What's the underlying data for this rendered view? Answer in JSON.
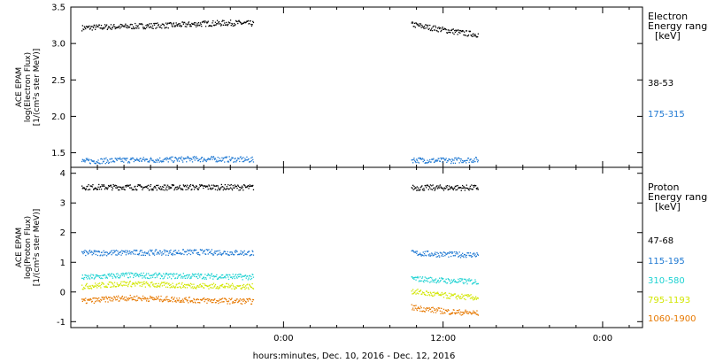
{
  "chart_data": [
    {
      "type": "scatter",
      "panel": "electron",
      "ylabel_lines": [
        "ACE EPAM",
        "log(Electron Flux)",
        "[1/(cm²s ster MeV)]"
      ],
      "ylim": [
        1.3,
        3.5
      ],
      "yticks": [
        1.5,
        2.0,
        2.5,
        3.0,
        3.5
      ],
      "ytick_labels": [
        "1.5",
        "2.0",
        "2.5",
        "3.0",
        "3.5"
      ],
      "legend_title_lines": [
        "Electron",
        "Energy ranges",
        "[keV]"
      ],
      "series": [
        {
          "name": "38-53",
          "color": "#000000",
          "segments": [
            {
              "x": [
                -15.2,
                -14,
                -12,
                -10,
                -8,
                -6,
                -4,
                -2.3
              ],
              "y": [
                3.22,
                3.23,
                3.24,
                3.25,
                3.26,
                3.28,
                3.29,
                3.28
              ]
            },
            {
              "x": [
                9.6,
                10.5,
                11.5,
                12.5,
                13.5,
                14.6
              ],
              "y": [
                3.27,
                3.24,
                3.21,
                3.18,
                3.15,
                3.13
              ]
            }
          ]
        },
        {
          "name": "175-315",
          "color": "#1e78d2",
          "segments": [
            {
              "x": [
                -15.2,
                -13,
                -11,
                -9,
                -7,
                -5,
                -2.3
              ],
              "y": [
                1.39,
                1.4,
                1.41,
                1.41,
                1.42,
                1.42,
                1.41
              ]
            },
            {
              "x": [
                9.6,
                11,
                12.5,
                14,
                14.6
              ],
              "y": [
                1.41,
                1.4,
                1.4,
                1.41,
                1.41
              ]
            }
          ]
        }
      ]
    },
    {
      "type": "scatter",
      "panel": "proton",
      "ylabel_lines": [
        "ACE EPAM",
        "log(Proton Flux)",
        "[1/(cm²s ster MeV)]"
      ],
      "ylim": [
        -1.2,
        4.2
      ],
      "yticks": [
        -1,
        0,
        1,
        2,
        3,
        4
      ],
      "ytick_labels": [
        "-1",
        "0",
        "1",
        "2",
        "3",
        "4"
      ],
      "legend_title_lines": [
        "Proton",
        "Energy ranges",
        "[keV]"
      ],
      "series": [
        {
          "name": "47-68",
          "color": "#000000",
          "segments": [
            {
              "x": [
                -15.2,
                -12,
                -9,
                -6,
                -2.3
              ],
              "y": [
                3.55,
                3.55,
                3.54,
                3.55,
                3.54
              ]
            },
            {
              "x": [
                9.6,
                12,
                14.6
              ],
              "y": [
                3.53,
                3.53,
                3.53
              ]
            }
          ]
        },
        {
          "name": "115-195",
          "color": "#1e78d2",
          "segments": [
            {
              "x": [
                -15.2,
                -12,
                -9,
                -6,
                -2.3
              ],
              "y": [
                1.33,
                1.34,
                1.35,
                1.36,
                1.33
              ]
            },
            {
              "x": [
                9.6,
                11,
                12.5,
                14.6
              ],
              "y": [
                1.33,
                1.3,
                1.28,
                1.27
              ]
            }
          ]
        },
        {
          "name": "310-580",
          "color": "#1ed2d2",
          "segments": [
            {
              "x": [
                -15.2,
                -12,
                -9,
                -6,
                -2.3
              ],
              "y": [
                0.5,
                0.58,
                0.56,
                0.55,
                0.52
              ]
            },
            {
              "x": [
                9.6,
                11,
                12.5,
                14.6
              ],
              "y": [
                0.47,
                0.43,
                0.39,
                0.36
              ]
            }
          ]
        },
        {
          "name": "795-1193",
          "color": "#d2e600",
          "segments": [
            {
              "x": [
                -15.2,
                -12,
                -9,
                -6,
                -2.3
              ],
              "y": [
                0.2,
                0.3,
                0.25,
                0.22,
                0.2
              ]
            },
            {
              "x": [
                9.6,
                11,
                12.5,
                14.6
              ],
              "y": [
                0.05,
                -0.05,
                -0.12,
                -0.18
              ]
            }
          ]
        },
        {
          "name": "1060-1900",
          "color": "#e67800",
          "segments": [
            {
              "x": [
                -15.2,
                -12,
                -9,
                -6,
                -2.3
              ],
              "y": [
                -0.3,
                -0.18,
                -0.22,
                -0.27,
                -0.3
              ]
            },
            {
              "x": [
                9.6,
                11,
                12.5,
                14.6
              ],
              "y": [
                -0.5,
                -0.58,
                -0.65,
                -0.7
              ]
            }
          ]
        }
      ]
    }
  ],
  "x_axis": {
    "xlim": [
      -16,
      27
    ],
    "ticks": [
      0,
      12,
      24
    ],
    "tick_labels": [
      "0:00",
      "12:00",
      "0:00"
    ],
    "minor_step": 2,
    "label": "hours:minutes, Dec. 10, 2016 - Dec. 12, 2016"
  }
}
